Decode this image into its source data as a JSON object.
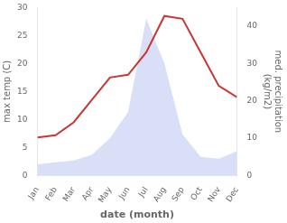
{
  "chart_data": {
    "type": "line",
    "xlabel": "date (month)",
    "ylabel": "max temp (C)",
    "y2label": "med. precipitation\n(kg/m2)",
    "categories": [
      "Jan",
      "Feb",
      "Mar",
      "Apr",
      "May",
      "Jun",
      "Jul",
      "Aug",
      "Sep",
      "Oct",
      "Nov",
      "Dec"
    ],
    "series": [
      {
        "type": "line",
        "color": "#cc3333",
        "values": [
          6.8,
          7.2,
          9.5,
          13.5,
          17.5,
          18.0,
          22.0,
          28.5,
          28.0,
          22.0,
          16.0,
          14.0
        ]
      },
      {
        "type": "area",
        "color": "#b8c4f0",
        "axis": "y2",
        "values": [
          3.0,
          3.5,
          4.0,
          5.5,
          10.0,
          17.0,
          42.0,
          30.0,
          11.0,
          5.0,
          4.5,
          6.5
        ]
      }
    ],
    "ylim": [
      0,
      30
    ],
    "yticks": [
      0,
      5,
      10,
      15,
      20,
      25,
      30
    ],
    "y2lim": [
      0,
      45
    ],
    "y2ticks": [
      0,
      10,
      20,
      30,
      40
    ],
    "grid": false
  }
}
